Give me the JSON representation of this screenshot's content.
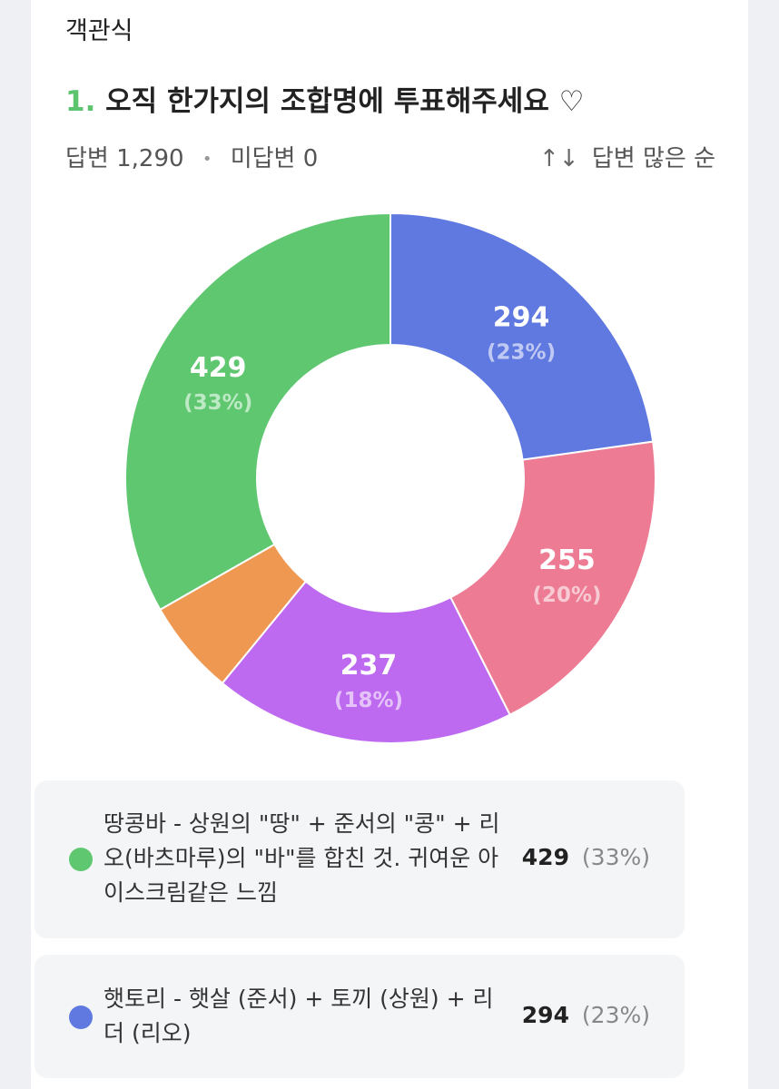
{
  "section_label": "객관식",
  "question": {
    "number": "1.",
    "text": "오직 한가지의 조합명에 투표해주세요 ♡"
  },
  "stats": {
    "answered": "답변 1,290",
    "dot": "•",
    "unanswered": "미답변 0"
  },
  "sort": {
    "icon": "sort-arrows-icon",
    "arrows": "↑↓",
    "label": "답변 많은 순"
  },
  "chart_data": {
    "type": "pie",
    "total": 1290,
    "slices": [
      {
        "value": 294,
        "percent": "(23%)",
        "color": "#6079e0"
      },
      {
        "value": 255,
        "percent": "(20%)",
        "color": "#ec7b93"
      },
      {
        "value": 237,
        "percent": "(18%)",
        "color": "#bd6af1"
      },
      {
        "value": 75,
        "percent": "",
        "color": "#ee9852"
      },
      {
        "value": 429,
        "percent": "(33%)",
        "color": "#5ec76f"
      }
    ]
  },
  "options": [
    {
      "text": "땅콩바 - 상원의 \"땅\" + 준서의 \"콩\" + 리오(바츠마루)의 \"바\"를 합친 것. 귀여운 아이스크림같은 느낌",
      "count": "429",
      "percent": "(33%)",
      "color": "#5ec76f"
    },
    {
      "text": "햇토리 - 햇살 (준서) + 토끼 (상원) + 리더 (리오)",
      "count": "294",
      "percent": "(23%)",
      "color": "#6079e0"
    }
  ]
}
